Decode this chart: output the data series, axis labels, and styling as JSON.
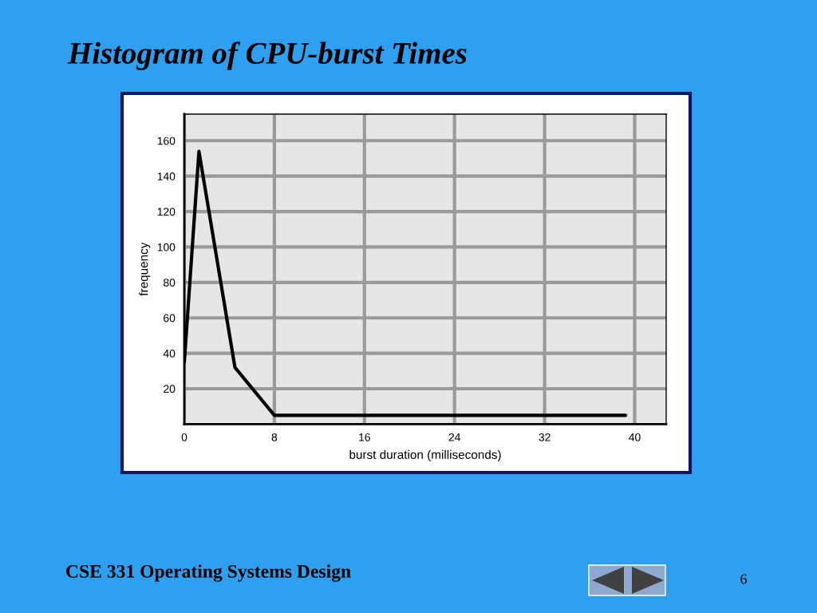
{
  "chart_data": {
    "type": "line",
    "title": "Histogram of CPU-burst Times",
    "xlabel": "burst duration (milliseconds)",
    "ylabel": "frequency",
    "annotations": [
      "CSE 331 Operating Systems Design",
      "6"
    ],
    "series": [
      {
        "color": "#000000",
        "x": [
          0,
          1.3,
          4.5,
          8,
          39.2
        ],
        "values": [
          35,
          154,
          32,
          5,
          5
        ]
      }
    ],
    "xlim": [
      0,
      42.8
    ],
    "ylim": [
      0,
      175
    ],
    "xticks": [
      0,
      8,
      16,
      24,
      32,
      40
    ],
    "yticks": [
      20,
      40,
      60,
      80,
      100,
      120,
      140,
      160
    ],
    "grid": true
  }
}
